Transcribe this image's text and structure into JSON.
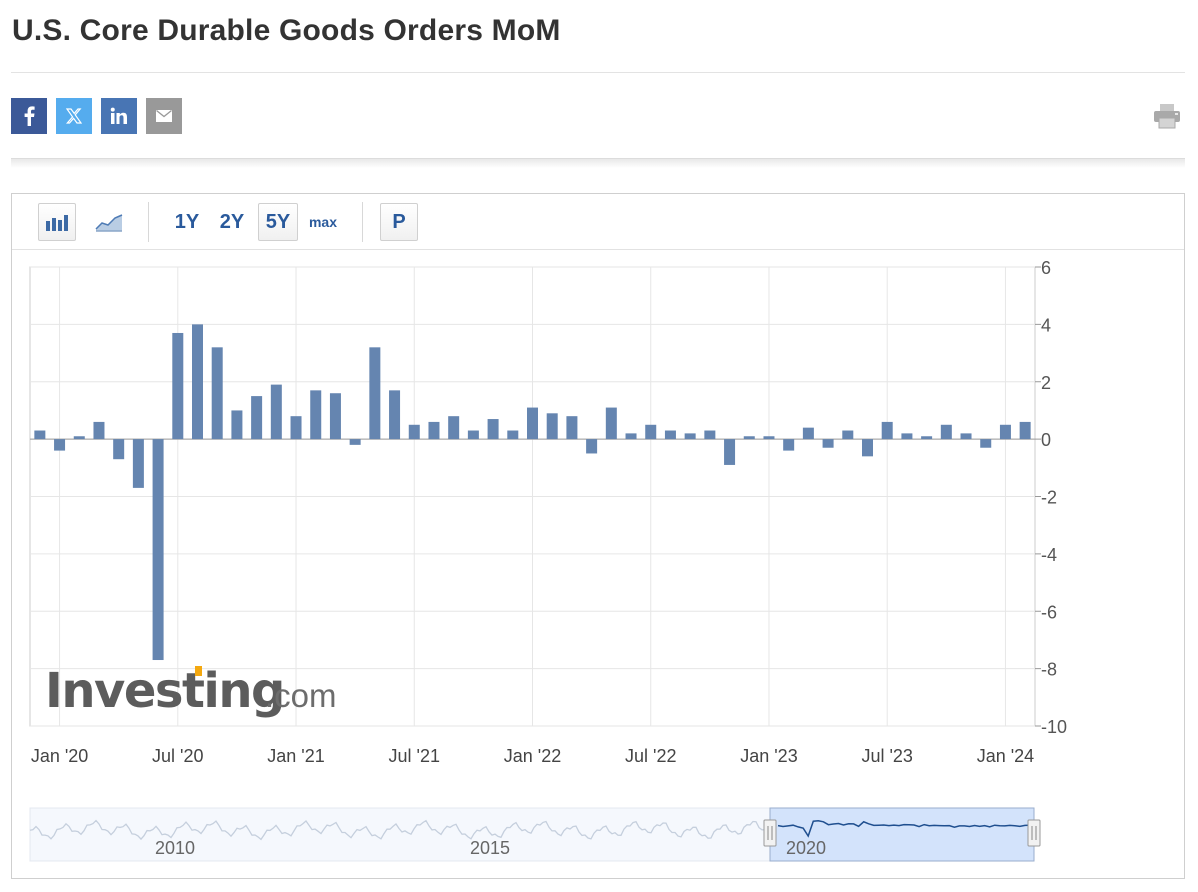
{
  "page": {
    "title": "U.S. Core Durable Goods Orders MoM"
  },
  "share": {
    "items": [
      {
        "name": "facebook",
        "icon": "facebook-icon",
        "color": "#3b5998"
      },
      {
        "name": "twitter",
        "icon": "x-twitter-icon",
        "color": "#55acee"
      },
      {
        "name": "linkedin",
        "icon": "linkedin-icon",
        "color": "#4875b4"
      },
      {
        "name": "email",
        "icon": "envelope-icon",
        "color": "#999999"
      }
    ],
    "print_icon": "printer-icon"
  },
  "toolbar": {
    "chart_type_icons": [
      "bar-chart-icon",
      "area-chart-icon"
    ],
    "ranges": [
      "1Y",
      "2Y",
      "5Y",
      "max"
    ],
    "active_range": "5Y",
    "p_label": "P"
  },
  "watermark": {
    "brand": "Investing",
    "suffix": ".com"
  },
  "chart_data": {
    "type": "bar",
    "categories": [
      "Dec '19",
      "Jan '20",
      "Feb '20",
      "Mar '20",
      "Apr '20",
      "May '20",
      "Jun '20",
      "Jul '20",
      "Aug '20",
      "Sep '20",
      "Oct '20",
      "Nov '20",
      "Dec '20",
      "Jan '21",
      "Feb '21",
      "Mar '21",
      "Apr '21",
      "May '21",
      "Jun '21",
      "Jul '21",
      "Aug '21",
      "Sep '21",
      "Oct '21",
      "Nov '21",
      "Dec '21",
      "Jan '22",
      "Feb '22",
      "Mar '22",
      "Apr '22",
      "May '22",
      "Jun '22",
      "Jul '22",
      "Aug '22",
      "Sep '22",
      "Oct '22",
      "Nov '22",
      "Dec '22",
      "Jan '23",
      "Feb '23",
      "Mar '23",
      "Apr '23",
      "May '23",
      "Jun '23",
      "Jul '23",
      "Aug '23",
      "Sep '23",
      "Oct '23",
      "Nov '23",
      "Dec '23",
      "Jan '24",
      "Feb '24"
    ],
    "values": [
      0.3,
      -0.4,
      0.1,
      0.6,
      -0.7,
      -1.7,
      -7.7,
      3.7,
      4.0,
      3.2,
      1.0,
      1.5,
      1.9,
      0.8,
      1.7,
      1.6,
      -0.2,
      3.2,
      1.7,
      0.5,
      0.6,
      0.8,
      0.3,
      0.7,
      0.3,
      1.1,
      0.9,
      0.8,
      -0.5,
      1.1,
      0.2,
      0.5,
      0.3,
      0.2,
      0.3,
      -0.9,
      0.1,
      0.1,
      -0.4,
      0.4,
      -0.3,
      0.3,
      -0.6,
      0.6,
      0.2,
      0.1,
      0.5,
      0.2,
      -0.3,
      0.5,
      0.6
    ],
    "bar_color": "#6585b0",
    "yticks": [
      "6",
      "4",
      "2",
      "0",
      "-2",
      "-4",
      "-6",
      "-8",
      "-10"
    ],
    "xticks": [
      "Jan '20",
      "Jul '20",
      "Jan '21",
      "Jul '21",
      "Jan '22",
      "Jul '22",
      "Jan '23",
      "Jul '23",
      "Jan '24"
    ],
    "ylim": [
      -10,
      6
    ],
    "grid": true,
    "navigator": {
      "labels": [
        "2010",
        "2015",
        "2020"
      ],
      "selected_range": [
        "Jan '19",
        "Feb '24"
      ]
    }
  }
}
